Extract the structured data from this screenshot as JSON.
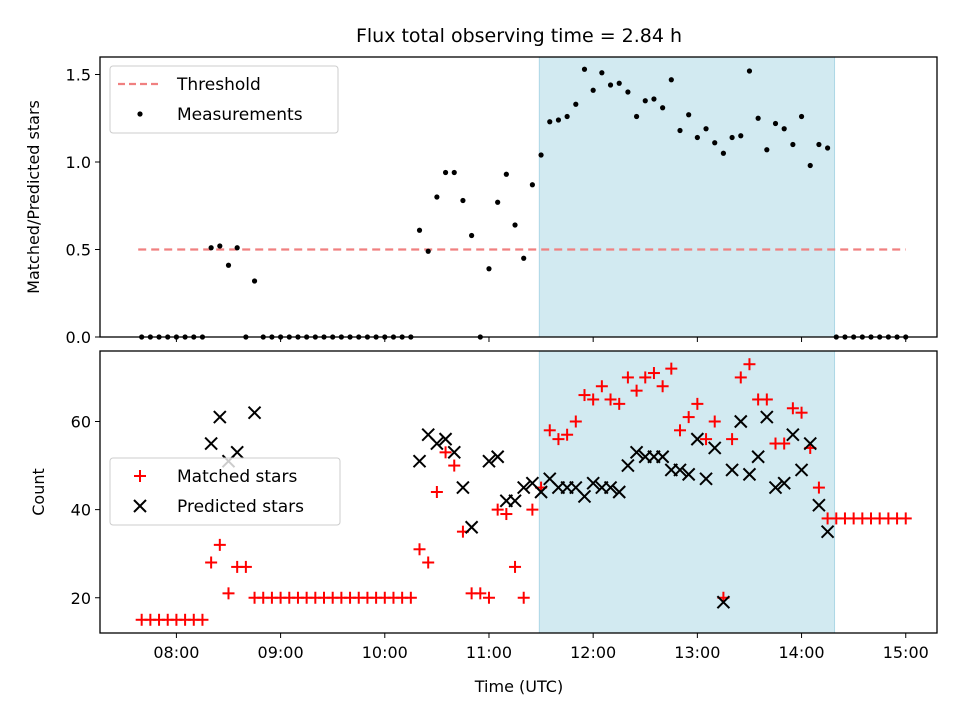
{
  "chart_data": [
    {
      "type": "scatter",
      "title": "Flux total observing time = 2.84 h",
      "xlabel": "",
      "ylabel": "Matched/Predicted stars",
      "ylim": [
        0,
        1.6
      ],
      "yticks": [
        0.0,
        0.5,
        1.0,
        1.5
      ],
      "ytick_labels": [
        "0.0",
        "0.5",
        "1.0",
        "1.5"
      ],
      "shaded_interval": [
        "11:29",
        "14:19"
      ],
      "shaded_color": "#add8e6",
      "legend_position": "top-left",
      "threshold": {
        "name": "Threshold",
        "value": 0.5,
        "x_range": [
          "07:38",
          "15:00"
        ],
        "color": "#f08080",
        "style": "dashed"
      },
      "series": [
        {
          "name": "Measurements",
          "color": "#000000",
          "marker": "dot",
          "points": [
            [
              "07:40",
              0
            ],
            [
              "07:45",
              0
            ],
            [
              "07:50",
              0
            ],
            [
              "07:55",
              0
            ],
            [
              "08:00",
              0
            ],
            [
              "08:05",
              0
            ],
            [
              "08:10",
              0
            ],
            [
              "08:15",
              0
            ],
            [
              "08:20",
              0.51
            ],
            [
              "08:25",
              0.52
            ],
            [
              "08:30",
              0.41
            ],
            [
              "08:35",
              0.51
            ],
            [
              "08:40",
              0
            ],
            [
              "08:45",
              0.32
            ],
            [
              "08:50",
              0
            ],
            [
              "08:55",
              0
            ],
            [
              "09:00",
              0
            ],
            [
              "09:05",
              0
            ],
            [
              "09:10",
              0
            ],
            [
              "09:15",
              0
            ],
            [
              "09:20",
              0
            ],
            [
              "09:25",
              0
            ],
            [
              "09:30",
              0
            ],
            [
              "09:35",
              0
            ],
            [
              "09:40",
              0
            ],
            [
              "09:45",
              0
            ],
            [
              "09:50",
              0
            ],
            [
              "09:55",
              0
            ],
            [
              "10:00",
              0
            ],
            [
              "10:05",
              0
            ],
            [
              "10:10",
              0
            ],
            [
              "10:15",
              0
            ],
            [
              "10:20",
              0.61
            ],
            [
              "10:25",
              0.49
            ],
            [
              "10:30",
              0.8
            ],
            [
              "10:35",
              0.94
            ],
            [
              "10:40",
              0.94
            ],
            [
              "10:45",
              0.78
            ],
            [
              "10:50",
              0.58
            ],
            [
              "10:55",
              0
            ],
            [
              "11:00",
              0.39
            ],
            [
              "11:05",
              0.77
            ],
            [
              "11:10",
              0.93
            ],
            [
              "11:15",
              0.64
            ],
            [
              "11:20",
              0.45
            ],
            [
              "11:25",
              0.87
            ],
            [
              "11:30",
              1.04
            ],
            [
              "11:35",
              1.23
            ],
            [
              "11:40",
              1.24
            ],
            [
              "11:45",
              1.26
            ],
            [
              "11:50",
              1.33
            ],
            [
              "11:55",
              1.53
            ],
            [
              "12:00",
              1.41
            ],
            [
              "12:05",
              1.51
            ],
            [
              "12:10",
              1.44
            ],
            [
              "12:15",
              1.45
            ],
            [
              "12:20",
              1.4
            ],
            [
              "12:25",
              1.26
            ],
            [
              "12:30",
              1.35
            ],
            [
              "12:35",
              1.36
            ],
            [
              "12:40",
              1.31
            ],
            [
              "12:45",
              1.47
            ],
            [
              "12:50",
              1.18
            ],
            [
              "12:55",
              1.27
            ],
            [
              "13:00",
              1.14
            ],
            [
              "13:05",
              1.19
            ],
            [
              "13:10",
              1.11
            ],
            [
              "13:15",
              1.05
            ],
            [
              "13:20",
              1.14
            ],
            [
              "13:25",
              1.15
            ],
            [
              "13:30",
              1.52
            ],
            [
              "13:35",
              1.25
            ],
            [
              "13:40",
              1.07
            ],
            [
              "13:45",
              1.22
            ],
            [
              "13:50",
              1.19
            ],
            [
              "13:55",
              1.1
            ],
            [
              "14:00",
              1.26
            ],
            [
              "14:05",
              0.98
            ],
            [
              "14:10",
              1.1
            ],
            [
              "14:15",
              1.08
            ],
            [
              "14:20",
              0
            ],
            [
              "14:25",
              0
            ],
            [
              "14:30",
              0
            ],
            [
              "14:35",
              0
            ],
            [
              "14:40",
              0
            ],
            [
              "14:45",
              0
            ],
            [
              "14:50",
              0
            ],
            [
              "14:55",
              0
            ],
            [
              "15:00",
              0
            ]
          ]
        }
      ]
    },
    {
      "type": "scatter",
      "title": "",
      "xlabel": "Time (UTC)",
      "ylabel": "Count",
      "ylim": [
        12,
        76
      ],
      "yticks": [
        20,
        40,
        60
      ],
      "ytick_labels": [
        "20",
        "40",
        "60"
      ],
      "xlim": [
        "07:16",
        "15:18"
      ],
      "xticks": [
        "08:00",
        "09:00",
        "10:00",
        "11:00",
        "12:00",
        "13:00",
        "14:00",
        "15:00"
      ],
      "xtick_labels": [
        "08:00",
        "09:00",
        "10:00",
        "11:00",
        "12:00",
        "13:00",
        "14:00",
        "15:00"
      ],
      "shaded_interval": [
        "11:29",
        "14:19"
      ],
      "shaded_color": "#add8e6",
      "legend_position": "center-left",
      "series": [
        {
          "name": "Matched stars",
          "color": "#ff0000",
          "marker": "plus",
          "points": [
            [
              "07:40",
              15
            ],
            [
              "07:45",
              15
            ],
            [
              "07:50",
              15
            ],
            [
              "07:55",
              15
            ],
            [
              "08:00",
              15
            ],
            [
              "08:05",
              15
            ],
            [
              "08:10",
              15
            ],
            [
              "08:15",
              15
            ],
            [
              "08:20",
              28
            ],
            [
              "08:25",
              32
            ],
            [
              "08:30",
              21
            ],
            [
              "08:35",
              27
            ],
            [
              "08:40",
              27
            ],
            [
              "08:45",
              20
            ],
            [
              "08:50",
              20
            ],
            [
              "08:55",
              20
            ],
            [
              "09:00",
              20
            ],
            [
              "09:05",
              20
            ],
            [
              "09:10",
              20
            ],
            [
              "09:15",
              20
            ],
            [
              "09:20",
              20
            ],
            [
              "09:25",
              20
            ],
            [
              "09:30",
              20
            ],
            [
              "09:35",
              20
            ],
            [
              "09:40",
              20
            ],
            [
              "09:45",
              20
            ],
            [
              "09:50",
              20
            ],
            [
              "09:55",
              20
            ],
            [
              "10:00",
              20
            ],
            [
              "10:05",
              20
            ],
            [
              "10:10",
              20
            ],
            [
              "10:15",
              20
            ],
            [
              "10:20",
              31
            ],
            [
              "10:25",
              28
            ],
            [
              "10:30",
              44
            ],
            [
              "10:35",
              53
            ],
            [
              "10:40",
              50
            ],
            [
              "10:45",
              35
            ],
            [
              "10:50",
              21
            ],
            [
              "10:55",
              21
            ],
            [
              "11:00",
              20
            ],
            [
              "11:05",
              40
            ],
            [
              "11:10",
              39
            ],
            [
              "11:15",
              27
            ],
            [
              "11:20",
              20
            ],
            [
              "11:25",
              40
            ],
            [
              "11:30",
              45
            ],
            [
              "11:35",
              58
            ],
            [
              "11:40",
              56
            ],
            [
              "11:45",
              57
            ],
            [
              "11:50",
              60
            ],
            [
              "11:55",
              66
            ],
            [
              "12:00",
              65
            ],
            [
              "12:05",
              68
            ],
            [
              "12:10",
              65
            ],
            [
              "12:15",
              64
            ],
            [
              "12:20",
              70
            ],
            [
              "12:25",
              67
            ],
            [
              "12:30",
              70
            ],
            [
              "12:35",
              71
            ],
            [
              "12:40",
              68
            ],
            [
              "12:45",
              72
            ],
            [
              "12:50",
              58
            ],
            [
              "12:55",
              61
            ],
            [
              "13:00",
              64
            ],
            [
              "13:05",
              56
            ],
            [
              "13:10",
              60
            ],
            [
              "13:15",
              20
            ],
            [
              "13:20",
              56
            ],
            [
              "13:25",
              70
            ],
            [
              "13:30",
              73
            ],
            [
              "13:35",
              65
            ],
            [
              "13:40",
              65
            ],
            [
              "13:45",
              55
            ],
            [
              "13:50",
              55
            ],
            [
              "13:55",
              63
            ],
            [
              "14:00",
              62
            ],
            [
              "14:05",
              54
            ],
            [
              "14:10",
              45
            ],
            [
              "14:15",
              38
            ],
            [
              "14:20",
              38
            ],
            [
              "14:25",
              38
            ],
            [
              "14:30",
              38
            ],
            [
              "14:35",
              38
            ],
            [
              "14:40",
              38
            ],
            [
              "14:45",
              38
            ],
            [
              "14:50",
              38
            ],
            [
              "14:55",
              38
            ],
            [
              "15:00",
              38
            ]
          ]
        },
        {
          "name": "Predicted stars",
          "color": "#000000",
          "marker": "x",
          "points": [
            [
              "08:20",
              55
            ],
            [
              "08:25",
              61
            ],
            [
              "08:30",
              51
            ],
            [
              "08:35",
              53
            ],
            [
              "08:45",
              62
            ],
            [
              "10:20",
              51
            ],
            [
              "10:25",
              57
            ],
            [
              "10:30",
              55
            ],
            [
              "10:35",
              56
            ],
            [
              "10:40",
              53
            ],
            [
              "10:45",
              45
            ],
            [
              "10:50",
              36
            ],
            [
              "11:00",
              51
            ],
            [
              "11:05",
              52
            ],
            [
              "11:10",
              42
            ],
            [
              "11:15",
              42
            ],
            [
              "11:20",
              45
            ],
            [
              "11:25",
              46
            ],
            [
              "11:30",
              44
            ],
            [
              "11:35",
              47
            ],
            [
              "11:40",
              45
            ],
            [
              "11:45",
              45
            ],
            [
              "11:50",
              45
            ],
            [
              "11:55",
              43
            ],
            [
              "12:00",
              46
            ],
            [
              "12:05",
              45
            ],
            [
              "12:10",
              45
            ],
            [
              "12:15",
              44
            ],
            [
              "12:20",
              50
            ],
            [
              "12:25",
              53
            ],
            [
              "12:30",
              52
            ],
            [
              "12:35",
              52
            ],
            [
              "12:40",
              52
            ],
            [
              "12:45",
              49
            ],
            [
              "12:50",
              49
            ],
            [
              "12:55",
              48
            ],
            [
              "13:00",
              56
            ],
            [
              "13:05",
              47
            ],
            [
              "13:10",
              54
            ],
            [
              "13:15",
              19
            ],
            [
              "13:20",
              49
            ],
            [
              "13:25",
              60
            ],
            [
              "13:30",
              48
            ],
            [
              "13:35",
              52
            ],
            [
              "13:40",
              61
            ],
            [
              "13:45",
              45
            ],
            [
              "13:50",
              46
            ],
            [
              "13:55",
              57
            ],
            [
              "14:00",
              49
            ],
            [
              "14:05",
              55
            ],
            [
              "14:10",
              41
            ],
            [
              "14:15",
              35
            ]
          ]
        }
      ]
    }
  ]
}
